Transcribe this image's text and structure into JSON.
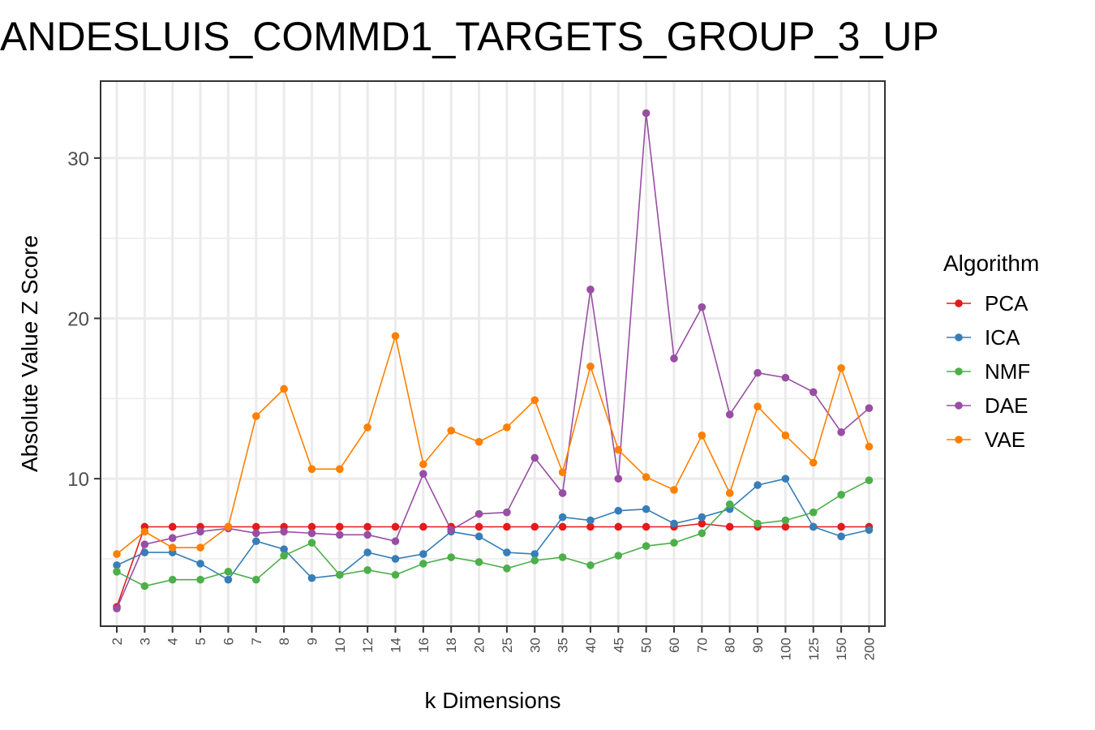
{
  "chart_data": {
    "type": "line",
    "title": "ANDESLUIS_COMMD1_TARGETS_GROUP_3_UP",
    "xlabel": "k Dimensions",
    "ylabel": "Absolute Value Z Score",
    "ylim": [
      0.8,
      34.8
    ],
    "y_ticks": [
      10,
      20,
      30
    ],
    "grid": true,
    "legend_title": "Algorithm",
    "legend_position": "right",
    "categories": [
      "2",
      "3",
      "4",
      "5",
      "6",
      "7",
      "8",
      "9",
      "10",
      "12",
      "14",
      "16",
      "18",
      "20",
      "25",
      "30",
      "35",
      "40",
      "45",
      "50",
      "60",
      "70",
      "80",
      "90",
      "100",
      "125",
      "150",
      "200"
    ],
    "series": [
      {
        "name": "PCA",
        "color": "#e41a1c",
        "values": [
          2.0,
          7.0,
          7.0,
          7.0,
          7.0,
          7.0,
          7.0,
          7.0,
          7.0,
          7.0,
          7.0,
          7.0,
          7.0,
          7.0,
          7.0,
          7.0,
          7.0,
          7.0,
          7.0,
          7.0,
          7.0,
          7.2,
          7.0,
          7.0,
          7.0,
          7.0,
          7.0,
          7.0
        ]
      },
      {
        "name": "ICA",
        "color": "#377eb8",
        "values": [
          4.6,
          5.4,
          5.4,
          4.7,
          3.7,
          6.1,
          5.6,
          3.8,
          4.0,
          5.4,
          5.0,
          5.3,
          6.7,
          6.4,
          5.4,
          5.3,
          7.6,
          7.4,
          8.0,
          8.1,
          7.2,
          7.6,
          8.1,
          9.6,
          10.0,
          7.0,
          6.4,
          6.8
        ]
      },
      {
        "name": "NMF",
        "color": "#4daf4a",
        "values": [
          4.2,
          3.3,
          3.7,
          3.7,
          4.2,
          3.7,
          5.2,
          6.0,
          4.0,
          4.3,
          4.0,
          4.7,
          5.1,
          4.8,
          4.4,
          4.9,
          5.1,
          4.6,
          5.2,
          5.8,
          6.0,
          6.6,
          8.4,
          7.2,
          7.4,
          7.9,
          9.0,
          9.9
        ]
      },
      {
        "name": "DAE",
        "color": "#984ea3",
        "values": [
          1.9,
          5.9,
          6.3,
          6.7,
          6.9,
          6.6,
          6.7,
          6.6,
          6.5,
          6.5,
          6.1,
          10.3,
          6.8,
          7.8,
          7.9,
          11.3,
          9.1,
          21.8,
          10.0,
          32.8,
          17.5,
          20.7,
          14.0,
          16.6,
          16.3,
          15.4,
          12.9,
          14.4
        ]
      },
      {
        "name": "VAE",
        "color": "#ff7f00",
        "values": [
          5.3,
          6.7,
          5.7,
          5.7,
          7.0,
          13.9,
          15.6,
          10.6,
          10.6,
          13.2,
          18.9,
          10.9,
          13.0,
          12.3,
          13.2,
          14.9,
          10.4,
          17.0,
          11.8,
          10.1,
          9.3,
          12.7,
          9.1,
          14.5,
          12.7,
          11.0,
          16.9,
          12.0
        ]
      }
    ]
  }
}
